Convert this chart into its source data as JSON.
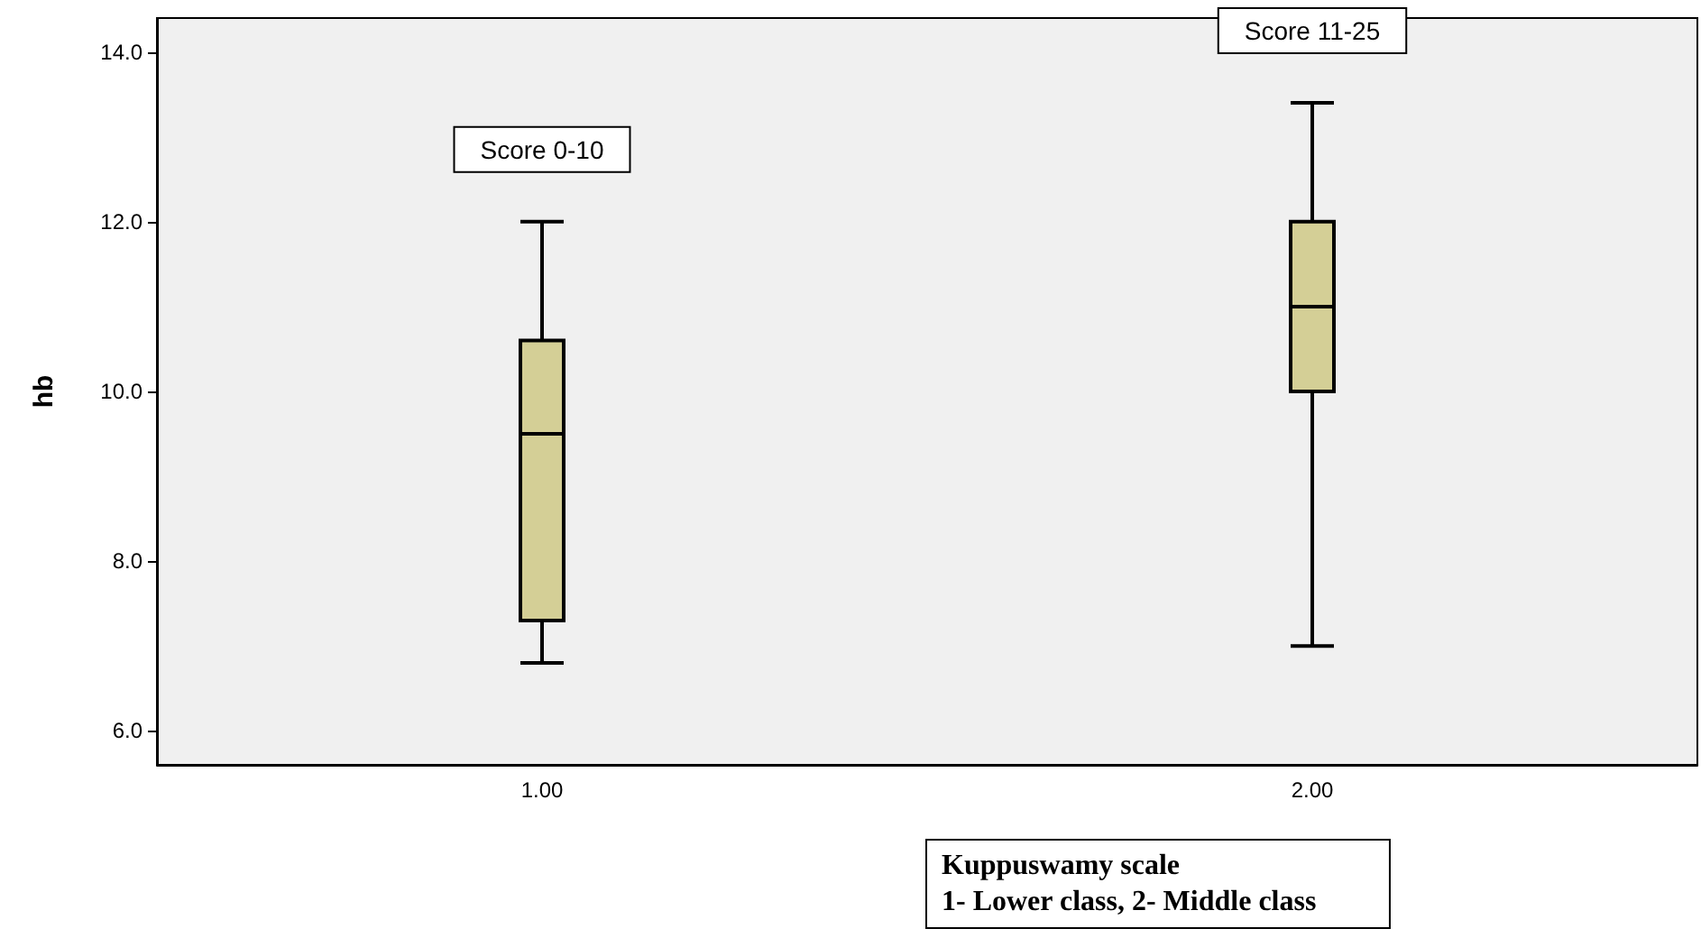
{
  "chart_data": {
    "type": "box",
    "xlabel": "Kuppuswamy scale\n1- Lower class, 2- Middle class",
    "ylabel": "hb",
    "categories": [
      "1.00",
      "2.00"
    ],
    "boxes": [
      {
        "low": 6.8,
        "q1": 7.3,
        "median": 9.5,
        "q3": 10.6,
        "high": 12.0
      },
      {
        "low": 7.0,
        "q1": 10.0,
        "median": 11.0,
        "q3": 12.0,
        "high": 13.4
      }
    ],
    "color": "#d4cf96",
    "ylim": [
      5.6,
      14.4
    ],
    "yticks": [
      {
        "value": 6,
        "label": "6.0"
      },
      {
        "value": 8,
        "label": "8.0"
      },
      {
        "value": 10,
        "label": "10.0"
      },
      {
        "value": 12,
        "label": "12.0"
      },
      {
        "value": 14,
        "label": "14.0"
      }
    ],
    "grid": false,
    "annotations": [
      "Score 0-10",
      "Score 11-25"
    ]
  }
}
